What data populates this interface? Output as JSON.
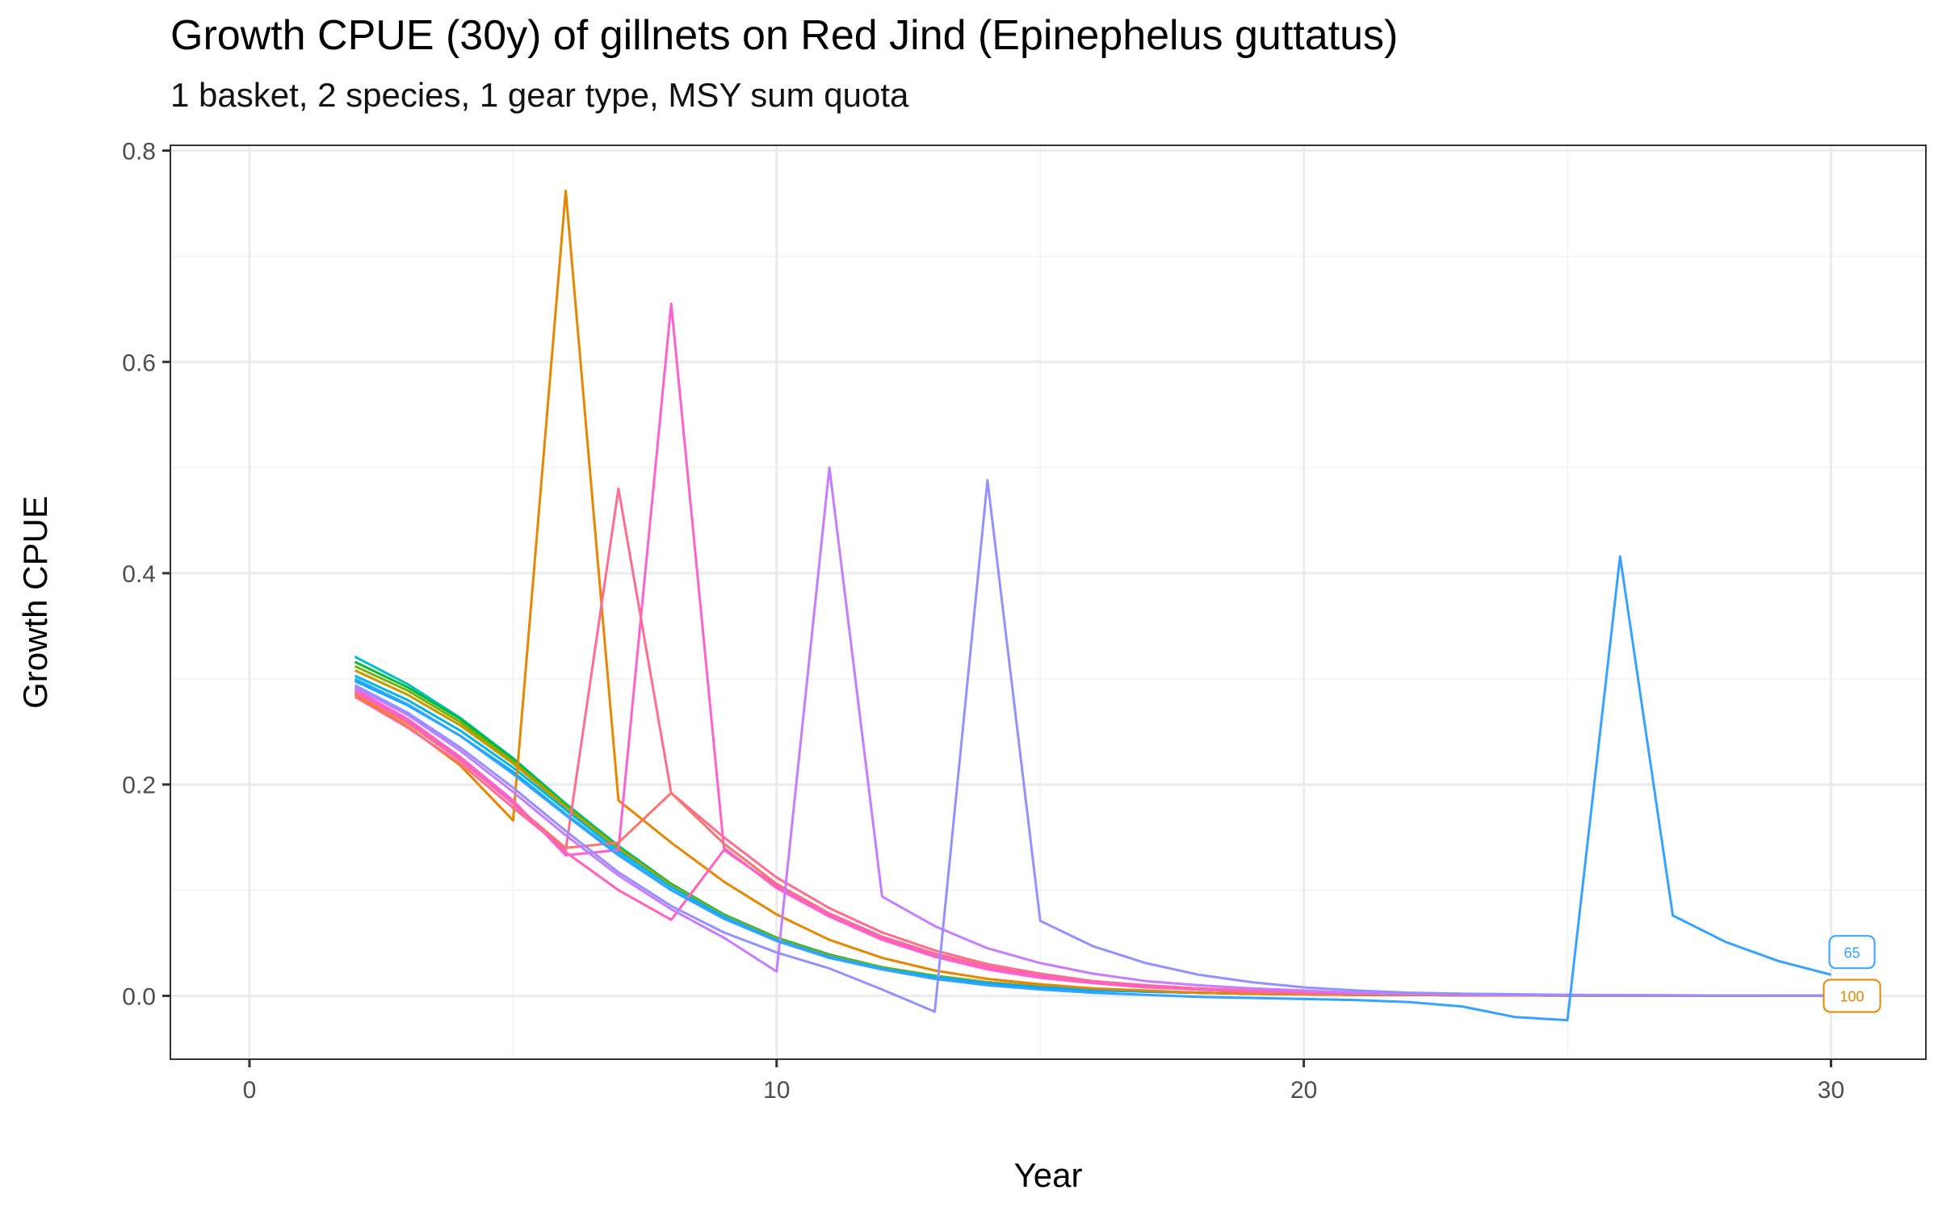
{
  "chart_data": {
    "type": "line",
    "title": "Growth CPUE (30y) of gillnets on Red Jind (Epinephelus guttatus)",
    "subtitle": "1 basket, 2 species, 1 gear type, MSY sum quota",
    "xlabel": "Year",
    "ylabel": "Growth CPUE",
    "xlim": [
      -1.5,
      31.8
    ],
    "ylim": [
      -0.06,
      0.805
    ],
    "x_ticks": [
      0,
      10,
      20,
      30
    ],
    "y_ticks": [
      0.0,
      0.2,
      0.4,
      0.6,
      0.8
    ],
    "x_tick_labels": [
      "0",
      "10",
      "20",
      "30"
    ],
    "y_tick_labels": [
      "0.0",
      "0.2",
      "0.4",
      "0.6",
      "0.8"
    ],
    "grid": true,
    "x": [
      2,
      3,
      4,
      5,
      6,
      7,
      8,
      9,
      10,
      11,
      12,
      13,
      14,
      15,
      16,
      17,
      18,
      19,
      20,
      21,
      22,
      23,
      24,
      25,
      26,
      27,
      28,
      29,
      30
    ],
    "series": [
      {
        "color": "#00BFC4",
        "values": [
          0.321,
          0.295,
          0.263,
          0.225,
          0.182,
          0.142,
          0.106,
          0.077,
          0.055,
          0.039,
          0.027,
          0.019,
          0.013,
          0.009,
          0.006,
          0.004,
          0.003,
          0.002,
          0.0015,
          0.001,
          0.0008,
          0.0006,
          0.0004,
          0.0003,
          0.0002,
          0.00015,
          0.0001,
          7e-05,
          5e-05
        ]
      },
      {
        "color": "#00BA38",
        "values": [
          0.316,
          0.292,
          0.262,
          0.224,
          0.181,
          0.141,
          0.106,
          0.077,
          0.055,
          0.039,
          0.027,
          0.019,
          0.013,
          0.009,
          0.006,
          0.004,
          0.003,
          0.002,
          0.0015,
          0.001,
          0.0008,
          0.0006,
          0.0004,
          0.0003,
          0.0002,
          0.00015,
          0.0001,
          7e-05,
          5e-05
        ]
      },
      {
        "color": "#7CAE00",
        "values": [
          0.312,
          0.289,
          0.259,
          0.222,
          0.18,
          0.14,
          0.105,
          0.076,
          0.054,
          0.038,
          0.027,
          0.019,
          0.013,
          0.009,
          0.006,
          0.004,
          0.003,
          0.002,
          0.0015,
          0.001,
          0.0008,
          0.0006,
          0.0004,
          0.0003,
          0.0002,
          0.00015,
          0.0001,
          7e-05,
          5e-05
        ]
      },
      {
        "color": "#C49A00",
        "values": [
          0.308,
          0.285,
          0.256,
          0.22,
          0.178,
          0.139,
          0.104,
          0.076,
          0.054,
          0.038,
          0.026,
          0.018,
          0.013,
          0.009,
          0.006,
          0.004,
          0.003,
          0.002,
          0.0015,
          0.001,
          0.0008,
          0.0006,
          0.0004,
          0.0003,
          0.0002,
          0.00015,
          0.0001,
          7e-05,
          5e-05
        ]
      },
      {
        "color": "#00B9E3",
        "values": [
          0.303,
          0.28,
          0.251,
          0.216,
          0.176,
          0.137,
          0.103,
          0.075,
          0.053,
          0.037,
          0.026,
          0.018,
          0.012,
          0.008,
          0.006,
          0.004,
          0.003,
          0.002,
          0.0015,
          0.001,
          0.0008,
          0.0006,
          0.0004,
          0.0003,
          0.0002,
          0.00015,
          0.0001,
          7e-05,
          5e-05
        ]
      },
      {
        "color": "#00ADFA",
        "values": [
          0.298,
          0.275,
          0.246,
          0.212,
          0.172,
          0.134,
          0.1,
          0.073,
          0.052,
          0.036,
          0.025,
          0.017,
          0.012,
          0.008,
          0.005,
          0.004,
          0.003,
          0.002,
          0.0015,
          0.001,
          0.0008,
          0.0006,
          0.0004,
          0.0003,
          0.0002,
          0.00015,
          0.0001,
          7e-05,
          5e-05
        ]
      },
      {
        "color": "#E58700",
        "values": [
          0.285,
          0.255,
          0.218,
          0.166,
          0.762,
          0.185,
          0.145,
          0.108,
          0.077,
          0.053,
          0.036,
          0.024,
          0.016,
          0.011,
          0.007,
          0.005,
          0.003,
          0.002,
          0.0015,
          0.001,
          0.0008,
          0.0006,
          0.0004,
          0.0003,
          0.0002,
          0.00015,
          0.0001,
          7e-05,
          5e-05
        ]
      },
      {
        "color": "#FD61D1",
        "values": [
          0.29,
          0.262,
          0.226,
          0.185,
          0.133,
          0.138,
          0.655,
          0.14,
          0.102,
          0.075,
          0.053,
          0.037,
          0.025,
          0.017,
          0.012,
          0.008,
          0.006,
          0.004,
          0.003,
          0.002,
          0.0015,
          0.001,
          0.0008,
          0.0006,
          0.0004,
          0.0003,
          0.0002,
          0.00015,
          0.0001
        ]
      },
      {
        "color": "#FF6C91",
        "values": [
          0.283,
          0.254,
          0.22,
          0.178,
          0.138,
          0.48,
          0.192,
          0.15,
          0.112,
          0.083,
          0.06,
          0.043,
          0.03,
          0.021,
          0.014,
          0.01,
          0.007,
          0.005,
          0.003,
          0.002,
          0.0015,
          0.001,
          0.0008,
          0.0006,
          0.0004,
          0.0003,
          0.0002,
          0.00015,
          0.0001
        ]
      },
      {
        "color": "#F8766D",
        "values": [
          0.287,
          0.258,
          0.223,
          0.182,
          0.14,
          0.145,
          0.192,
          0.144,
          0.106,
          0.078,
          0.056,
          0.04,
          0.028,
          0.019,
          0.013,
          0.009,
          0.006,
          0.004,
          0.003,
          0.002,
          0.0015,
          0.001,
          0.0008,
          0.0006,
          0.0004,
          0.0003,
          0.0002,
          0.00015,
          0.0001
        ]
      },
      {
        "color": "#FF62BC",
        "values": [
          0.288,
          0.26,
          0.224,
          0.182,
          0.136,
          0.1,
          0.072,
          0.138,
          0.104,
          0.077,
          0.055,
          0.039,
          0.027,
          0.019,
          0.013,
          0.009,
          0.006,
          0.004,
          0.003,
          0.002,
          0.0015,
          0.001,
          0.0008,
          0.0006,
          0.0004,
          0.0003,
          0.0002,
          0.00015,
          0.0001
        ]
      },
      {
        "color": "#C77CFF",
        "values": [
          0.292,
          0.266,
          0.232,
          0.193,
          0.152,
          0.114,
          0.082,
          0.055,
          0.023,
          0.5,
          0.094,
          0.066,
          0.045,
          0.031,
          0.021,
          0.014,
          0.01,
          0.007,
          0.005,
          0.003,
          0.002,
          0.0015,
          0.001,
          0.0008,
          0.0006,
          0.0004,
          0.0003,
          0.0002,
          0.00015
        ]
      },
      {
        "color": "#9590FF",
        "values": [
          0.294,
          0.268,
          0.235,
          0.197,
          0.156,
          0.117,
          0.085,
          0.06,
          0.041,
          0.026,
          0.006,
          -0.015,
          0.488,
          0.071,
          0.047,
          0.031,
          0.02,
          0.013,
          0.008,
          0.005,
          0.003,
          0.002,
          0.0015,
          0.001,
          0.0007,
          0.0005,
          0.0003,
          0.0002,
          0.00015
        ]
      },
      {
        "color": "#35A2FF",
        "values": [
          0.3,
          0.276,
          0.246,
          0.21,
          0.171,
          0.133,
          0.1,
          0.073,
          0.052,
          0.036,
          0.025,
          0.016,
          0.01,
          0.006,
          0.003,
          0.001,
          -0.001,
          -0.002,
          -0.003,
          -0.004,
          -0.006,
          -0.01,
          -0.02,
          -0.023,
          0.416,
          0.076,
          0.051,
          0.033,
          0.02
        ]
      }
    ],
    "end_labels": [
      {
        "text": "65",
        "color": "#35A2FF",
        "x": 30,
        "y": 0.02
      },
      {
        "text": "100",
        "color": "#E58700",
        "x": 30,
        "y": 0.0
      }
    ]
  }
}
